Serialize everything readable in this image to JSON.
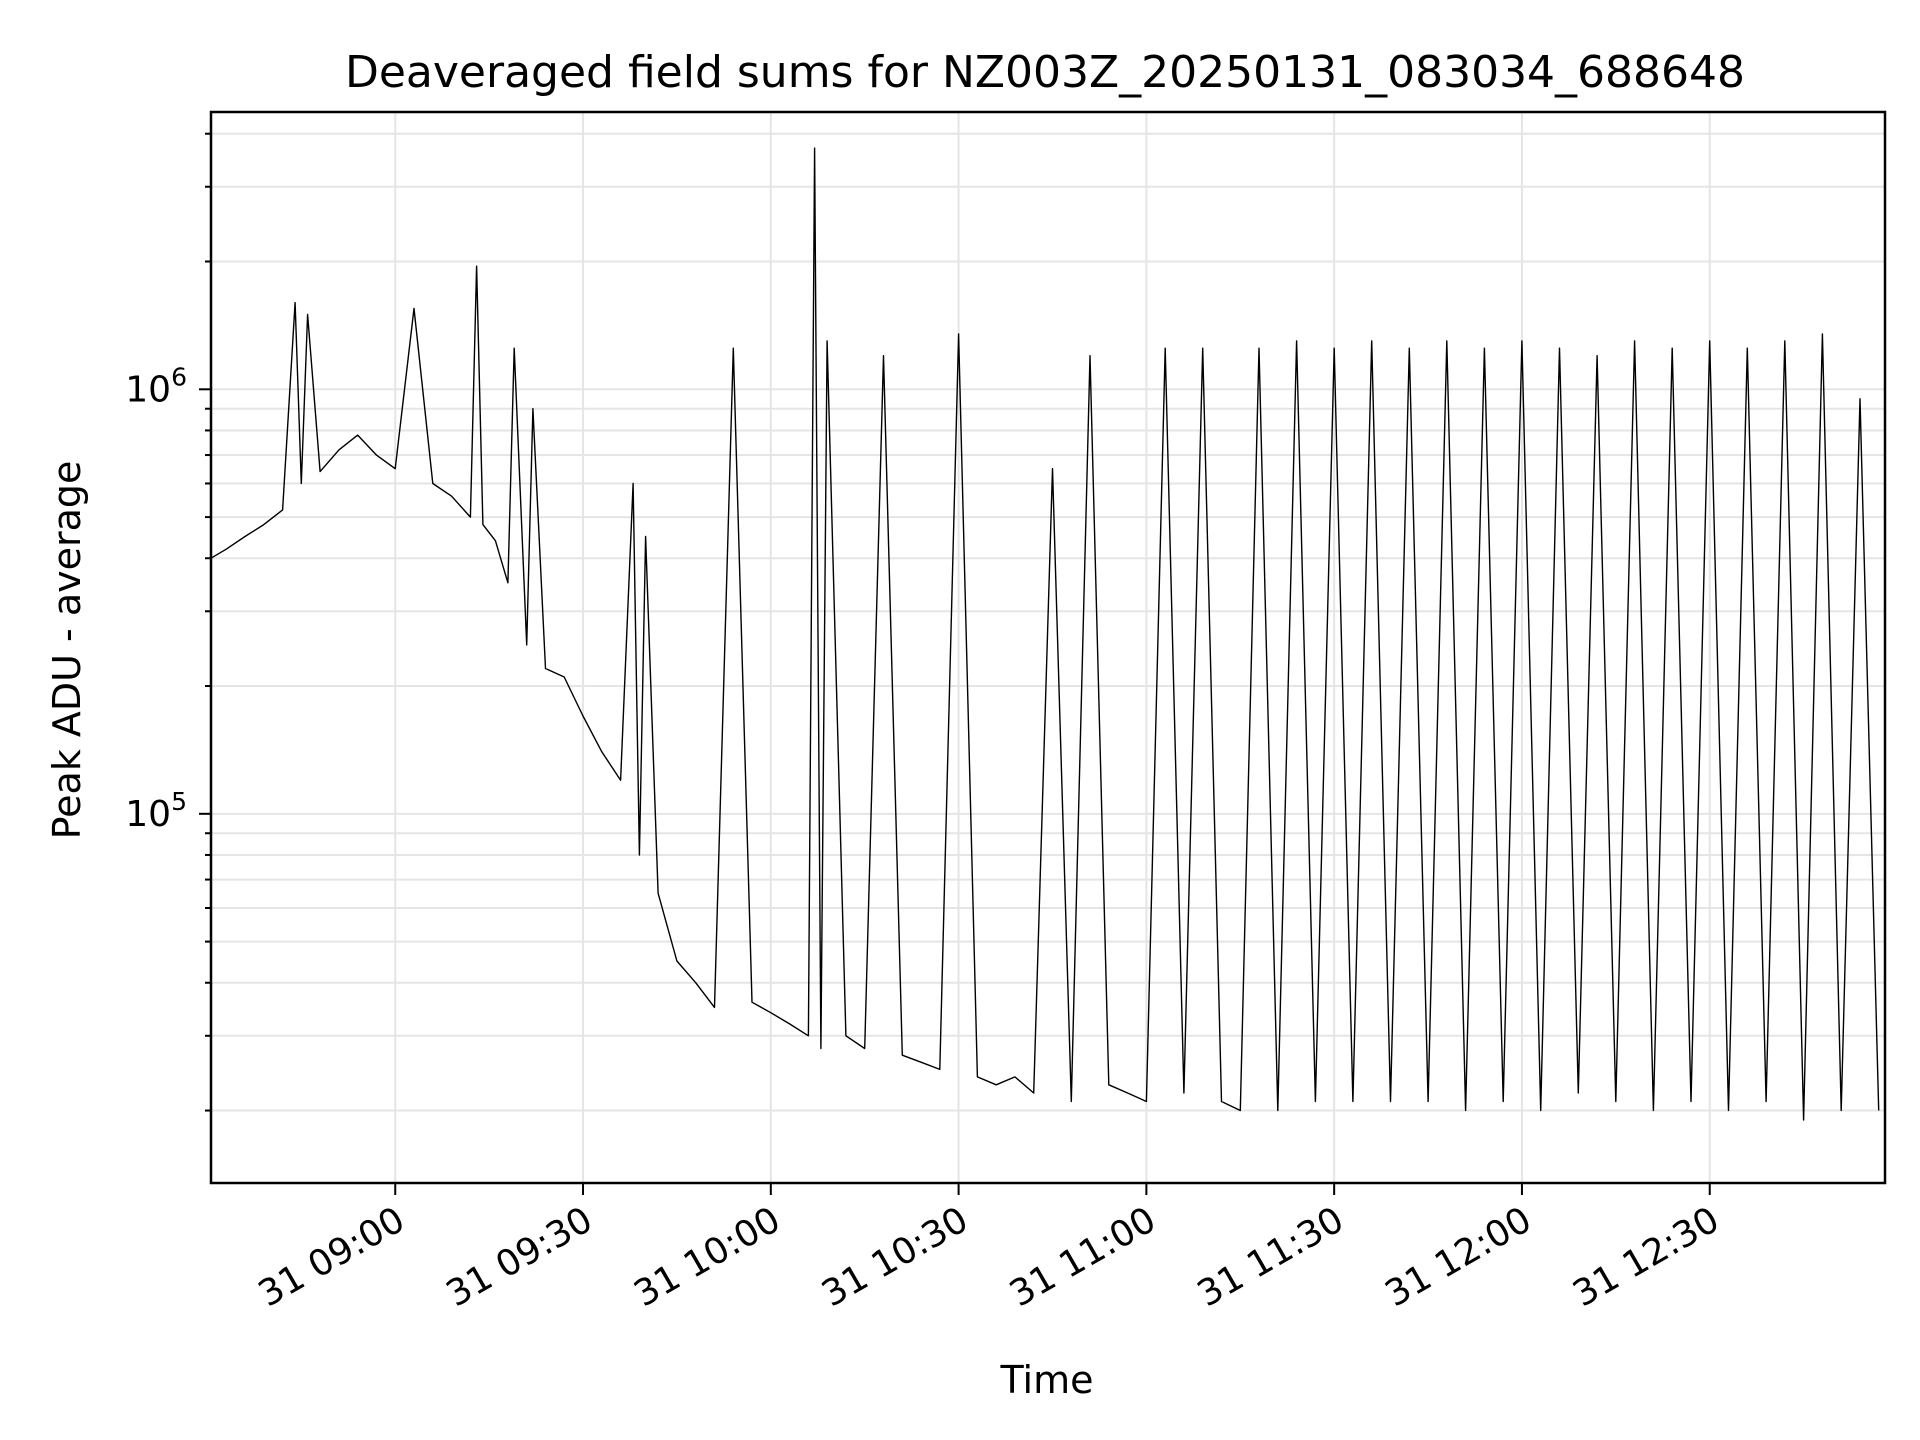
{
  "chart_data": {
    "type": "line",
    "title": "Deaveraged field sums for NZ003Z_20250131_083034_688648",
    "xlabel": "Time",
    "ylabel": "Peak ADU - average",
    "yscale": "log",
    "grid": true,
    "line_color": "#000000",
    "grid_color": "#e5e5e5",
    "x_axis": {
      "type": "time",
      "range": [
        "2025-01-31 08:30:34",
        "2025-01-31 12:58:00"
      ],
      "ticks": [
        {
          "value": "2025-01-31 09:00",
          "label": "31 09:00"
        },
        {
          "value": "2025-01-31 09:30",
          "label": "31 09:30"
        },
        {
          "value": "2025-01-31 10:00",
          "label": "31 10:00"
        },
        {
          "value": "2025-01-31 10:30",
          "label": "31 10:30"
        },
        {
          "value": "2025-01-31 11:00",
          "label": "31 11:00"
        },
        {
          "value": "2025-01-31 11:30",
          "label": "31 11:30"
        },
        {
          "value": "2025-01-31 12:00",
          "label": "31 12:00"
        },
        {
          "value": "2025-01-31 12:30",
          "label": "31 12:30"
        }
      ]
    },
    "y_axis": {
      "range": [
        13500,
        4500000
      ],
      "ticks": [
        {
          "value": 100000,
          "base": "10",
          "exp": "5"
        },
        {
          "value": 1000000,
          "base": "10",
          "exp": "6"
        }
      ]
    },
    "series": [
      {
        "x": [
          "2025-01-31 08:30:34",
          "2025-01-31 08:33",
          "2025-01-31 08:36",
          "2025-01-31 08:39",
          "2025-01-31 08:42",
          "2025-01-31 08:44",
          "2025-01-31 08:45",
          "2025-01-31 08:46",
          "2025-01-31 08:48",
          "2025-01-31 08:51",
          "2025-01-31 08:54",
          "2025-01-31 08:57",
          "2025-01-31 09:00",
          "2025-01-31 09:03",
          "2025-01-31 09:06",
          "2025-01-31 09:09",
          "2025-01-31 09:12",
          "2025-01-31 09:13",
          "2025-01-31 09:14",
          "2025-01-31 09:16",
          "2025-01-31 09:18",
          "2025-01-31 09:19",
          "2025-01-31 09:21",
          "2025-01-31 09:22",
          "2025-01-31 09:24",
          "2025-01-31 09:27",
          "2025-01-31 09:30",
          "2025-01-31 09:33",
          "2025-01-31 09:36",
          "2025-01-31 09:38",
          "2025-01-31 09:39",
          "2025-01-31 09:40",
          "2025-01-31 09:42",
          "2025-01-31 09:45",
          "2025-01-31 09:48",
          "2025-01-31 09:51",
          "2025-01-31 09:54",
          "2025-01-31 09:57",
          "2025-01-31 10:00",
          "2025-01-31 10:03",
          "2025-01-31 10:06",
          "2025-01-31 10:07",
          "2025-01-31 10:08",
          "2025-01-31 10:09",
          "2025-01-31 10:12",
          "2025-01-31 10:15",
          "2025-01-31 10:18",
          "2025-01-31 10:21",
          "2025-01-31 10:24",
          "2025-01-31 10:27",
          "2025-01-31 10:30",
          "2025-01-31 10:33",
          "2025-01-31 10:36",
          "2025-01-31 10:39",
          "2025-01-31 10:42",
          "2025-01-31 10:45",
          "2025-01-31 10:48",
          "2025-01-31 10:51",
          "2025-01-31 10:54",
          "2025-01-31 10:57",
          "2025-01-31 11:00",
          "2025-01-31 11:03",
          "2025-01-31 11:06",
          "2025-01-31 11:09",
          "2025-01-31 11:12",
          "2025-01-31 11:15",
          "2025-01-31 11:18",
          "2025-01-31 11:21",
          "2025-01-31 11:24",
          "2025-01-31 11:27",
          "2025-01-31 11:30",
          "2025-01-31 11:33",
          "2025-01-31 11:36",
          "2025-01-31 11:39",
          "2025-01-31 11:42",
          "2025-01-31 11:45",
          "2025-01-31 11:48",
          "2025-01-31 11:51",
          "2025-01-31 11:54",
          "2025-01-31 11:57",
          "2025-01-31 12:00",
          "2025-01-31 12:03",
          "2025-01-31 12:06",
          "2025-01-31 12:09",
          "2025-01-31 12:12",
          "2025-01-31 12:15",
          "2025-01-31 12:18",
          "2025-01-31 12:21",
          "2025-01-31 12:24",
          "2025-01-31 12:27",
          "2025-01-31 12:30",
          "2025-01-31 12:33",
          "2025-01-31 12:36",
          "2025-01-31 12:39",
          "2025-01-31 12:42",
          "2025-01-31 12:45",
          "2025-01-31 12:48",
          "2025-01-31 12:51",
          "2025-01-31 12:54",
          "2025-01-31 12:57"
        ],
        "y": [
          400000,
          420000,
          450000,
          480000,
          520000,
          1600000,
          600000,
          1500000,
          640000,
          720000,
          780000,
          700000,
          650000,
          1550000,
          600000,
          560000,
          500000,
          1950000,
          480000,
          440000,
          350000,
          1250000,
          250000,
          900000,
          220000,
          210000,
          170000,
          140000,
          120000,
          600000,
          80000,
          450000,
          65000,
          45000,
          40000,
          35000,
          1250000,
          36000,
          34000,
          32000,
          30000,
          3700000,
          28000,
          1300000,
          30000,
          28000,
          1200000,
          27000,
          26000,
          25000,
          1350000,
          24000,
          23000,
          24000,
          22000,
          650000,
          21000,
          1200000,
          23000,
          22000,
          21000,
          1250000,
          22000,
          1250000,
          21000,
          20000,
          1250000,
          20000,
          1300000,
          21000,
          1250000,
          21000,
          1300000,
          21000,
          1250000,
          21000,
          1300000,
          20000,
          1250000,
          21000,
          1300000,
          20000,
          1250000,
          22000,
          1200000,
          21000,
          1300000,
          20000,
          1250000,
          21000,
          1300000,
          20000,
          1250000,
          21000,
          1300000,
          19000,
          1350000,
          20000,
          950000,
          20000
        ]
      }
    ]
  }
}
